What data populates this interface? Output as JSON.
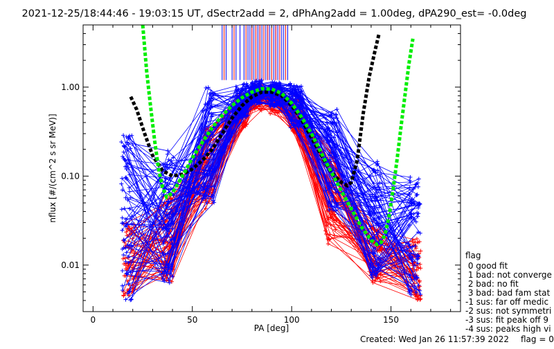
{
  "chart_data": {
    "type": "line",
    "title": "2021-12-25/18:44:46 - 19:03:15 UT, dSectr2add = 2, dPhAng2add = 1.00deg, dPA290_est=  -0.0deg",
    "xlabel": "PA [deg]",
    "ylabel": "nflux [#/(cm^2 s sr MeV)]",
    "xlim": [
      -5,
      185
    ],
    "ylim": [
      0.003,
      5.0
    ],
    "yscale": "log",
    "xticks": [
      0,
      50,
      100,
      150
    ],
    "xtick_labels": [
      "0",
      "50",
      "100",
      "150"
    ],
    "yticks": [
      0.01,
      0.1,
      1.0
    ],
    "ytick_labels": [
      "0.01",
      "0.10",
      "1.00"
    ],
    "grid": false,
    "colors": {
      "red": "#ff0000",
      "blue": "#0000ff",
      "green": "#00ee00",
      "black": "#000000",
      "axis": "#000000"
    },
    "series": [
      {
        "color": "#000000",
        "style": "thick-dashed",
        "x": [
          19,
          22,
          26,
          30,
          35,
          40,
          45,
          50,
          55,
          60,
          65,
          70,
          75,
          80,
          85,
          90,
          95,
          100,
          105,
          110,
          115,
          120,
          125,
          128,
          130,
          133,
          136,
          139,
          142,
          144
        ],
        "y": [
          0.78,
          0.56,
          0.3,
          0.17,
          0.115,
          0.1,
          0.105,
          0.12,
          0.15,
          0.2,
          0.3,
          0.45,
          0.62,
          0.78,
          0.88,
          0.88,
          0.8,
          0.62,
          0.43,
          0.27,
          0.17,
          0.11,
          0.085,
          0.078,
          0.085,
          0.15,
          0.5,
          1.3,
          2.6,
          4.0
        ]
      },
      {
        "color": "#00ee00",
        "style": "thick-dashed",
        "x": [
          25,
          27,
          29,
          31,
          33,
          35,
          37,
          40,
          45,
          50,
          55,
          60,
          65,
          70,
          75,
          80,
          85,
          90,
          95,
          100,
          105,
          110,
          115,
          120,
          125,
          130,
          135,
          140,
          143,
          145,
          147,
          149,
          151,
          153,
          155,
          157,
          159,
          161
        ],
        "y": [
          5.0,
          1.5,
          0.6,
          0.25,
          0.12,
          0.075,
          0.058,
          0.065,
          0.1,
          0.16,
          0.24,
          0.35,
          0.48,
          0.62,
          0.76,
          0.88,
          0.96,
          0.95,
          0.85,
          0.66,
          0.46,
          0.3,
          0.18,
          0.11,
          0.068,
          0.043,
          0.027,
          0.019,
          0.017,
          0.018,
          0.022,
          0.035,
          0.07,
          0.15,
          0.35,
          0.8,
          1.8,
          3.5
        ]
      }
    ],
    "bundles": [
      {
        "color": "#ff0000",
        "count": 60,
        "seed": 11,
        "x": [
          18,
          38,
          58,
          75,
          82,
          92,
          102,
          120,
          142,
          162
        ],
        "y_lo": [
          0.0045,
          0.006,
          0.04,
          0.35,
          0.55,
          0.5,
          0.3,
          0.015,
          0.006,
          0.004
        ],
        "y_hi": [
          0.03,
          0.06,
          0.35,
          0.85,
          1.1,
          1.0,
          0.75,
          0.2,
          0.03,
          0.02
        ]
      },
      {
        "color": "#0000ff",
        "count": 80,
        "seed": 23,
        "x": [
          17,
          38,
          58,
          75,
          82,
          92,
          102,
          120,
          142,
          162
        ],
        "y_lo": [
          0.004,
          0.006,
          0.05,
          0.45,
          0.65,
          0.6,
          0.35,
          0.04,
          0.007,
          0.0045
        ],
        "y_hi": [
          0.3,
          0.2,
          1.0,
          1.1,
          1.2,
          1.15,
          1.1,
          0.6,
          0.15,
          0.1
        ]
      }
    ],
    "vertical_markers": {
      "blue_x": [
        65,
        67,
        70,
        72,
        74,
        76,
        78,
        79,
        80,
        81,
        82,
        83,
        84,
        85,
        86,
        87,
        88,
        89,
        90,
        91,
        92,
        93,
        94,
        95,
        96,
        98
      ],
      "red_x": [
        66,
        71,
        77,
        80,
        82,
        84,
        86,
        88,
        90,
        92,
        94,
        97
      ],
      "y_from": 1.2,
      "y_to": 5.0
    }
  },
  "legend": {
    "title": "flag",
    "items": [
      " 0 good fit",
      " 1 bad: not converge",
      " 2 bad: no fit",
      " 3 bad: bad fam stat",
      "-1 sus: far off medic",
      "-2 sus: not symmetri",
      "-3 sus: fit peak off 9",
      "-4 sus: peaks high vi"
    ]
  },
  "footer": {
    "created": "Created: Wed Jan 26 11:57:39 2022",
    "flag": "flag = 0"
  }
}
